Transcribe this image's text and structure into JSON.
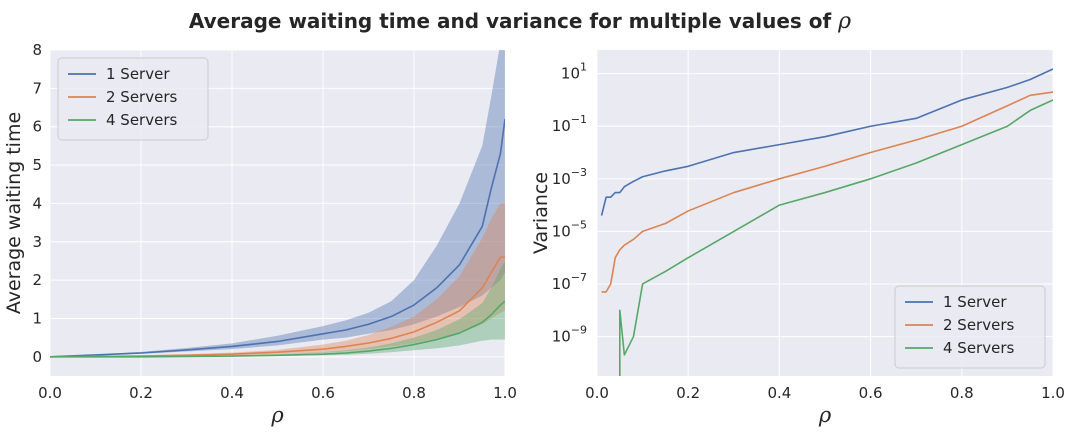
{
  "figure": {
    "title": "Average waiting time and variance for multiple values of",
    "title_symbol": "ρ"
  },
  "chart_data": [
    {
      "type": "line",
      "xlabel": "ρ",
      "ylabel": "Average waiting time",
      "xlim": [
        0,
        1
      ],
      "ylim": [
        -0.5,
        8
      ],
      "xticks": [
        "0.0",
        "0.2",
        "0.4",
        "0.6",
        "0.8",
        "1.0"
      ],
      "yticks": [
        "0",
        "1",
        "2",
        "3",
        "4",
        "5",
        "6",
        "7",
        "8"
      ],
      "yscale": "linear",
      "grid": true,
      "legend_position": "top-left",
      "shaded_band": "spread around each series",
      "x": [
        0.0,
        0.1,
        0.2,
        0.3,
        0.4,
        0.5,
        0.6,
        0.65,
        0.7,
        0.75,
        0.8,
        0.85,
        0.9,
        0.95,
        0.97,
        0.99,
        1.0
      ],
      "series": [
        {
          "name": "1 Server",
          "color": "#4c72b0",
          "values": [
            0.0,
            0.05,
            0.1,
            0.18,
            0.27,
            0.4,
            0.6,
            0.7,
            0.85,
            1.05,
            1.35,
            1.8,
            2.4,
            3.4,
            4.4,
            5.3,
            6.2
          ],
          "lower": [
            0.0,
            0.04,
            0.08,
            0.14,
            0.2,
            0.3,
            0.45,
            0.5,
            0.6,
            0.7,
            0.85,
            1.05,
            1.3,
            1.6,
            1.8,
            2.0,
            2.2
          ],
          "upper": [
            0.0,
            0.06,
            0.13,
            0.23,
            0.35,
            0.55,
            0.8,
            0.95,
            1.15,
            1.45,
            2.0,
            2.9,
            4.0,
            5.5,
            6.8,
            8.2,
            8.4
          ]
        },
        {
          "name": "2 Servers",
          "color": "#dd8452",
          "values": [
            0.0,
            0.01,
            0.02,
            0.04,
            0.07,
            0.12,
            0.2,
            0.27,
            0.36,
            0.48,
            0.65,
            0.9,
            1.2,
            1.8,
            2.2,
            2.6,
            2.6
          ],
          "lower": [
            0.0,
            0.0,
            0.01,
            0.02,
            0.04,
            0.07,
            0.11,
            0.15,
            0.2,
            0.27,
            0.35,
            0.48,
            0.6,
            0.85,
            1.0,
            1.15,
            1.2
          ],
          "upper": [
            0.0,
            0.02,
            0.04,
            0.07,
            0.11,
            0.18,
            0.32,
            0.42,
            0.57,
            0.78,
            1.05,
            1.5,
            2.1,
            3.1,
            3.6,
            4.0,
            4.0
          ]
        },
        {
          "name": "4 Servers",
          "color": "#55a868",
          "values": [
            0.0,
            0.0,
            0.0,
            0.01,
            0.02,
            0.04,
            0.07,
            0.1,
            0.15,
            0.22,
            0.32,
            0.45,
            0.62,
            0.9,
            1.1,
            1.35,
            1.45
          ],
          "lower": [
            0.0,
            0.0,
            0.0,
            0.0,
            0.01,
            0.02,
            0.04,
            0.05,
            0.08,
            0.12,
            0.17,
            0.22,
            0.3,
            0.42,
            0.45,
            0.45,
            0.45
          ],
          "upper": [
            0.0,
            0.01,
            0.01,
            0.02,
            0.04,
            0.07,
            0.12,
            0.17,
            0.24,
            0.35,
            0.5,
            0.7,
            0.98,
            1.4,
            1.8,
            2.3,
            2.5
          ]
        }
      ]
    },
    {
      "type": "line",
      "xlabel": "ρ",
      "ylabel": "Variance",
      "xlim": [
        0,
        1
      ],
      "ylim_log10": [
        -10.5,
        1.9
      ],
      "xticks": [
        "0.0",
        "0.2",
        "0.4",
        "0.6",
        "0.8",
        "1.0"
      ],
      "yticks": [
        {
          "base": "10",
          "exp": "1",
          "log10": 1
        },
        {
          "base": "10",
          "exp": "−1",
          "log10": -1
        },
        {
          "base": "10",
          "exp": "−3",
          "log10": -3
        },
        {
          "base": "10",
          "exp": "−5",
          "log10": -5
        },
        {
          "base": "10",
          "exp": "−7",
          "log10": -7
        },
        {
          "base": "10",
          "exp": "−9",
          "log10": -9
        }
      ],
      "yscale": "log",
      "grid": true,
      "legend_position": "bottom-right",
      "x": [
        0.01,
        0.02,
        0.03,
        0.04,
        0.05,
        0.06,
        0.08,
        0.1,
        0.15,
        0.2,
        0.3,
        0.4,
        0.5,
        0.6,
        0.7,
        0.8,
        0.9,
        0.95,
        1.0
      ],
      "series": [
        {
          "name": "1 Server",
          "color": "#4c72b0",
          "values": [
            4e-05,
            0.0002,
            0.0002,
            0.0003,
            0.0003,
            0.0005,
            0.0008,
            0.0012,
            0.002,
            0.003,
            0.01,
            0.02,
            0.04,
            0.1,
            0.2,
            1,
            3,
            6,
            15
          ]
        },
        {
          "name": "2 Servers",
          "color": "#dd8452",
          "values": [
            5e-08,
            5e-08,
            1e-07,
            1e-06,
            2e-06,
            3e-06,
            5e-06,
            1e-05,
            2e-05,
            6e-05,
            0.0003,
            0.001,
            0.003,
            0.01,
            0.03,
            0.1,
            0.6,
            1.5,
            2
          ]
        },
        {
          "name": "4 Servers",
          "color": "#55a868",
          "values": [
            null,
            null,
            null,
            null,
            1e-08,
            2e-10,
            1e-09,
            1e-07,
            3e-07,
            1e-06,
            1e-05,
            0.0001,
            0.0003,
            0.001,
            0.004,
            0.02,
            0.1,
            0.4,
            1
          ]
        }
      ]
    }
  ]
}
